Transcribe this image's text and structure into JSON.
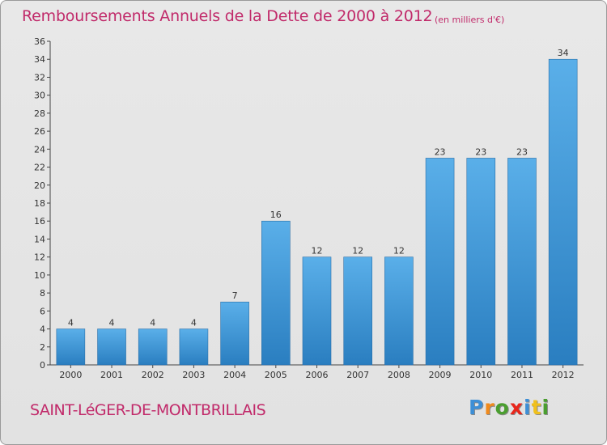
{
  "chart_data": {
    "type": "bar",
    "title": "Remboursements Annuels de la Dette de 2000 à 2012",
    "unit_label": "(en milliers d'€)",
    "categories": [
      "2000",
      "2001",
      "2002",
      "2003",
      "2004",
      "2005",
      "2006",
      "2007",
      "2008",
      "2009",
      "2010",
      "2011",
      "2012"
    ],
    "values": [
      4,
      4,
      4,
      4,
      7,
      16,
      12,
      12,
      12,
      23,
      23,
      23,
      34
    ],
    "ylim": [
      0,
      36
    ],
    "yticks": [
      0,
      2,
      4,
      6,
      8,
      10,
      12,
      14,
      16,
      18,
      20,
      22,
      24,
      26,
      28,
      30,
      32,
      34,
      36
    ],
    "grid": false,
    "bar_color": "#3f97d8",
    "text_color": "#c12a6a"
  },
  "commune": "SAINT-LéGER-DE-MONTBRILLAIS",
  "logo": {
    "text": "Proxiti",
    "letter_colors": [
      "#3d8fd6",
      "#f08a1c",
      "#4a9e2f",
      "#e8261c",
      "#3d8fd6",
      "#f0c01c",
      "#4a9e2f"
    ]
  }
}
